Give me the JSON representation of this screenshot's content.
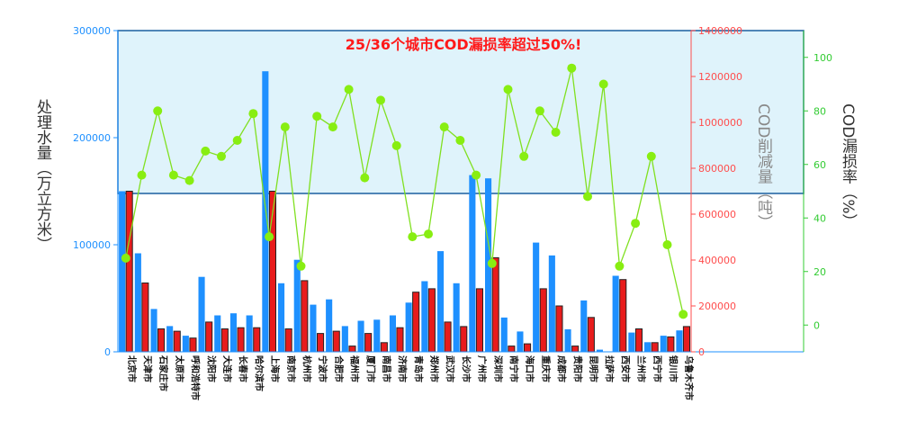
{
  "chart_data": {
    "type": "bar",
    "title": "25/36个城市COD漏损率超过50%!",
    "categories": [
      "北京市",
      "天津市",
      "石家庄市",
      "太原市",
      "呼和浩特市",
      "沈阳市",
      "大连市",
      "长春市",
      "哈尔滨市",
      "上海市",
      "南京市",
      "杭州市",
      "宁波市",
      "合肥市",
      "福州市",
      "厦门市",
      "南昌市",
      "济南市",
      "青岛市",
      "郑州市",
      "武汉市",
      "长沙市",
      "广州市",
      "深圳市",
      "南宁市",
      "海口市",
      "重庆市",
      "成都市",
      "贵阳市",
      "昆明市",
      "拉萨市",
      "西安市",
      "兰州市",
      "西宁市",
      "银川市",
      "乌鲁木齐市"
    ],
    "series": [
      {
        "axis": "left",
        "color": "#1e90ff",
        "values": [
          150000,
          92000,
          40000,
          24000,
          15000,
          70000,
          34000,
          36000,
          34000,
          262000,
          64000,
          86000,
          44000,
          49000,
          24000,
          29000,
          30000,
          34000,
          46000,
          66000,
          94000,
          64000,
          165000,
          162000,
          32000,
          19000,
          102000,
          90000,
          21000,
          48000,
          2000,
          71000,
          18000,
          9000,
          15000,
          20000
        ]
      },
      {
        "axis": "right",
        "color": "#e81c1c",
        "values": [
          700000,
          300000,
          100000,
          90000,
          60000,
          130000,
          100000,
          105000,
          105000,
          700000,
          100000,
          310000,
          80000,
          90000,
          25000,
          80000,
          40000,
          105000,
          260000,
          275000,
          130000,
          110000,
          275000,
          410000,
          25000,
          35000,
          275000,
          200000,
          25000,
          150000,
          0,
          315000,
          100000,
          40000,
          65000,
          110000
        ]
      },
      {
        "axis": "right2",
        "color": "#80e020",
        "values": [
          25,
          56,
          80,
          56,
          54,
          65,
          63,
          69,
          79,
          33,
          74,
          22,
          78,
          74,
          88,
          55,
          84,
          67,
          33,
          34,
          74,
          69,
          56,
          23,
          88,
          63,
          80,
          72,
          96,
          48,
          90,
          22,
          38,
          63,
          30,
          4
        ]
      }
    ],
    "ylabel": "处理水量（万立方米）",
    "ylabel_right": "COD削减量（吨）",
    "ylabel_right2": "COD漏损率（%）",
    "ylim": [
      0,
      300000
    ],
    "ylim_right": [
      0,
      1400000
    ],
    "ylim_right2": [
      -10,
      110
    ],
    "yticks_left": [
      "0",
      "100000",
      "200000",
      "300000"
    ],
    "yticks_right": [
      "0",
      "200000",
      "400000",
      "600000",
      "800000",
      "1000000",
      "1200000",
      "1400000"
    ],
    "yticks_right2": [
      "0",
      "20",
      "40",
      "60",
      "80",
      "100"
    ],
    "highlight_threshold": 50,
    "colors": {
      "left_axis": "#1e90ff",
      "right_axis": "#ff4d4d",
      "right2_axis": "#33cc33",
      "highlight": "#d9f2fa"
    }
  }
}
